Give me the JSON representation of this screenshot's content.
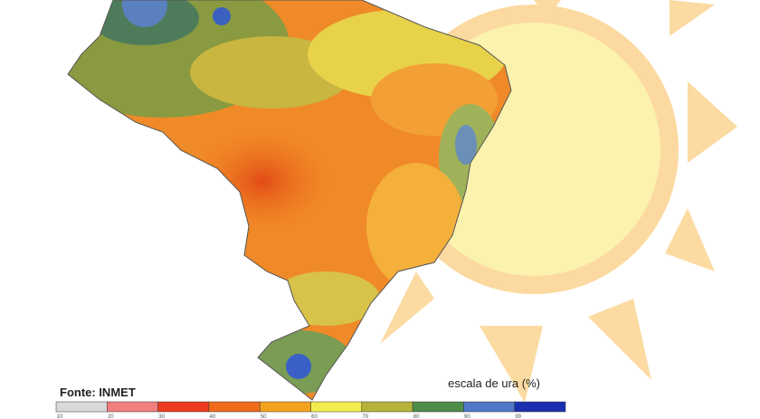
{
  "source": "Fonte: INMET",
  "legend": {
    "title": "escala de ura (%)",
    "ticks": [
      10,
      20,
      30,
      40,
      50,
      60,
      70,
      80,
      90,
      99
    ],
    "colors": [
      "#d9d9d9",
      "#f08080",
      "#ee3b1f",
      "#f06a1c",
      "#f5a21e",
      "#f2ec4e",
      "#b5b33a",
      "#4e8c4a",
      "#4f78c8",
      "#1a2fb0"
    ]
  }
}
